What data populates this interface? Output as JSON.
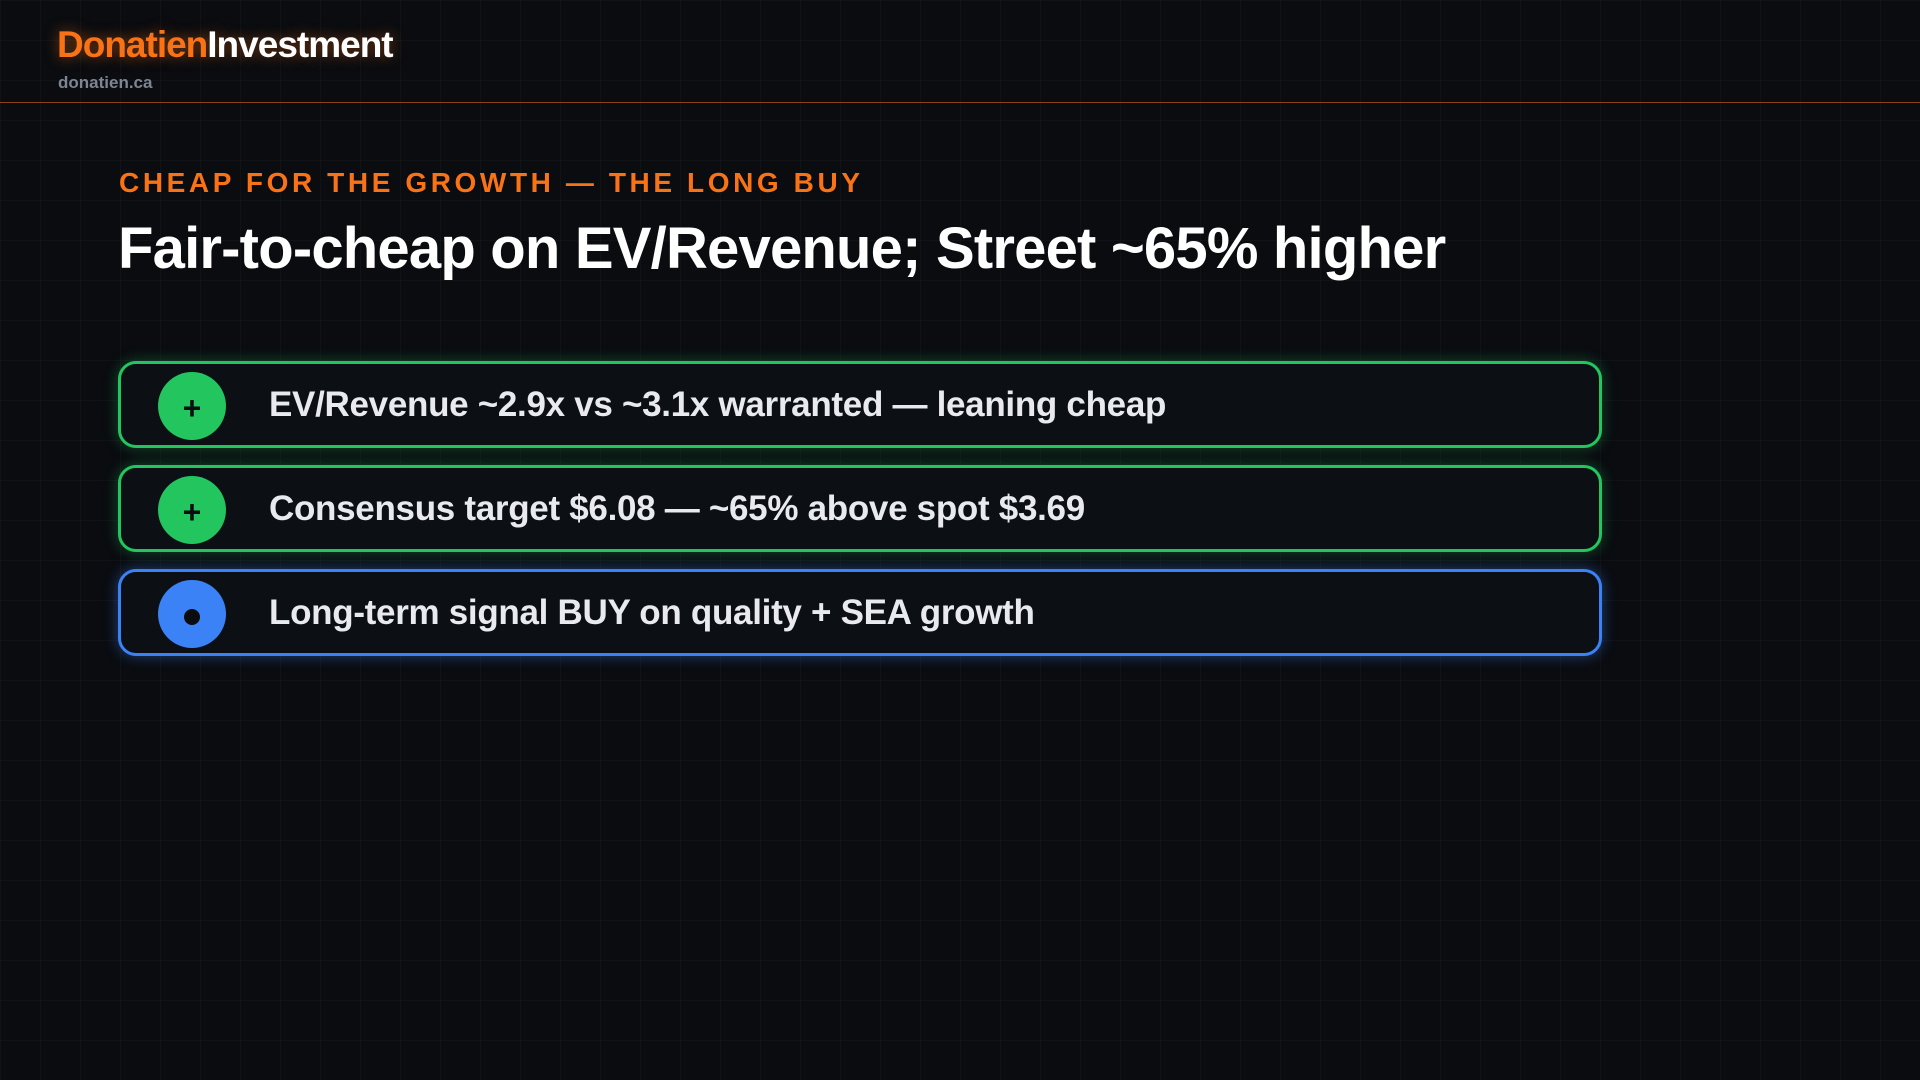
{
  "header": {
    "brand_primary": "Donatien",
    "brand_secondary": "Investment",
    "domain": "donatien.ca"
  },
  "slide": {
    "eyebrow": "CHEAP FOR THE GROWTH — THE LONG BUY",
    "title": "Fair-to-cheap on EV/Revenue; Street ~65% higher",
    "rows": [
      {
        "icon": "plus-icon",
        "symbol": "+",
        "status": "positive",
        "text": "EV/Revenue ~2.9x vs ~3.1x warranted — leaning cheap"
      },
      {
        "icon": "plus-icon",
        "symbol": "+",
        "status": "positive",
        "text": "Consensus target $6.08 — ~65% above spot $3.69"
      },
      {
        "icon": "dot-icon",
        "symbol": "•",
        "status": "neutral",
        "text": "Long-term signal BUY on quality + SEA growth"
      }
    ]
  },
  "colors": {
    "accent": "#f97316",
    "positive": "#22c55e",
    "neutral": "#3b82f6",
    "background": "#0a0c10"
  }
}
